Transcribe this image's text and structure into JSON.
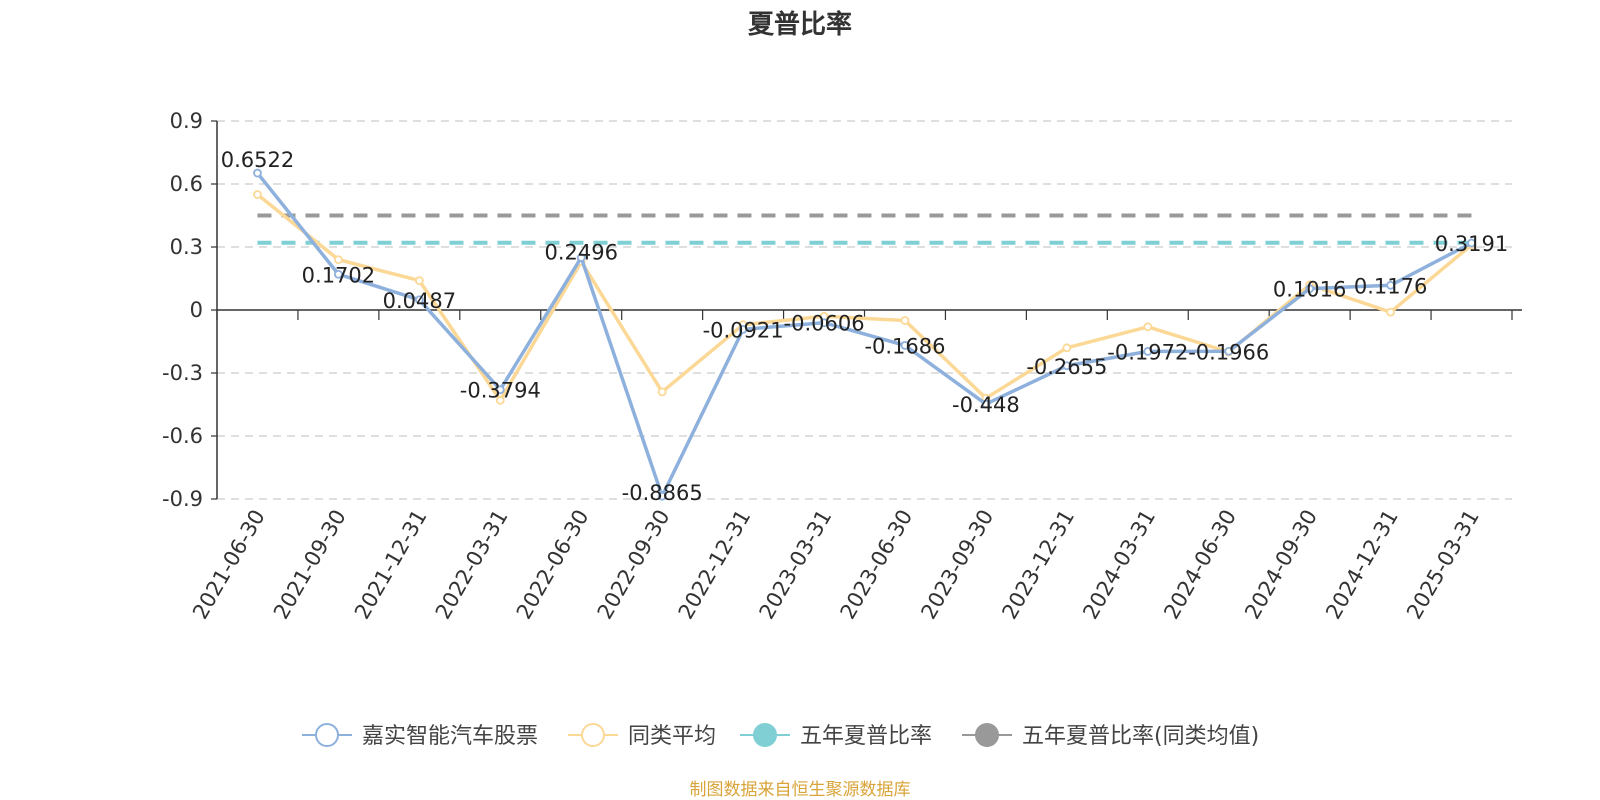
{
  "chart_data": {
    "type": "line",
    "title": "夏普比率",
    "x": [
      "2021-06-30",
      "2021-09-30",
      "2021-12-31",
      "2022-03-31",
      "2022-06-30",
      "2022-09-30",
      "2022-12-31",
      "2023-03-31",
      "2023-06-30",
      "2023-09-30",
      "2023-12-31",
      "2024-03-31",
      "2024-06-30",
      "2024-09-30",
      "2024-12-31",
      "2025-03-31"
    ],
    "y_ticks": [
      "0.9",
      "0.6",
      "0.3",
      "0",
      "-0.3",
      "-0.6",
      "-0.9"
    ],
    "ylim": [
      -0.9,
      0.9
    ],
    "grid": true,
    "legend_position": "bottom",
    "series": [
      {
        "name": "嘉实智能汽车股票",
        "color": "#8eb0dc",
        "values": [
          0.6522,
          0.1702,
          0.0487,
          -0.3794,
          0.2496,
          -0.8865,
          -0.0921,
          -0.0606,
          -0.1686,
          -0.448,
          -0.2655,
          -0.1972,
          -0.1966,
          0.1016,
          0.1176,
          0.3191
        ],
        "labels": [
          "0.6522",
          "0.1702",
          "0.0487",
          "-0.3794",
          "0.2496",
          "-0.8865",
          "-0.0921",
          "-0.0606",
          "-0.1686",
          "-0.448",
          "-0.2655",
          "-0.1972",
          "-0.1966",
          "0.1016",
          "0.1176",
          "0.3191"
        ]
      },
      {
        "name": "同类平均",
        "color": "#fbd896",
        "values": [
          0.55,
          0.24,
          0.14,
          -0.43,
          0.23,
          -0.39,
          -0.07,
          -0.03,
          -0.05,
          -0.42,
          -0.18,
          -0.08,
          -0.2,
          0.12,
          -0.01,
          0.31
        ]
      },
      {
        "name": "五年夏普比率",
        "color": "#7fcfd4",
        "constant": 0.32
      },
      {
        "name": "五年夏普比率(同类均值)",
        "color": "#999999",
        "constant": 0.45
      }
    ]
  },
  "footer": {
    "source": "制图数据来自恒生聚源数据库",
    "source_color": "#d9a43a"
  }
}
